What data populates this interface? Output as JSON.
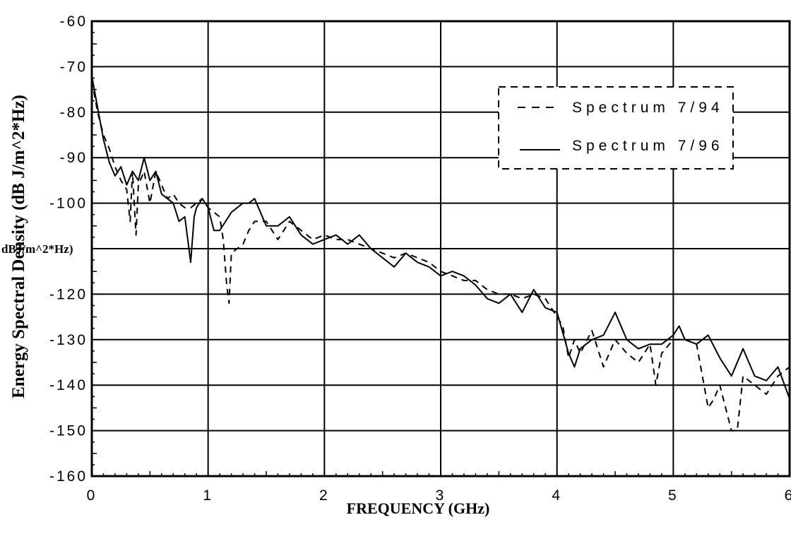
{
  "chart_data": {
    "type": "line",
    "xlabel": "FREQUENCY  (GHz)",
    "ylabel": "Energy Spectral Density (dB J/m^2*Hz)",
    "stray_label": "dBJ/m^2*Hz)",
    "xlim": [
      0,
      6
    ],
    "ylim": [
      -160,
      -60
    ],
    "x_ticks": [
      0,
      1,
      2,
      3,
      4,
      5,
      6
    ],
    "x_tick_labels": [
      "0",
      "1",
      "2",
      "3",
      "4",
      "5",
      "6"
    ],
    "y_ticks": [
      -60,
      -70,
      -80,
      -90,
      -100,
      -110,
      -120,
      -130,
      -140,
      -150,
      -160
    ],
    "y_tick_labels": [
      "-60",
      "-70",
      "-80",
      "-90",
      "-100",
      "",
      "-120",
      "-130",
      "-140",
      "-150",
      "-160"
    ],
    "grid": true,
    "legend_position": "top-right",
    "series": [
      {
        "name": "Spectrum 7/94",
        "style": "dashed",
        "color": "#000000",
        "x": [
          0,
          0.05,
          0.1,
          0.15,
          0.2,
          0.25,
          0.3,
          0.33,
          0.35,
          0.38,
          0.4,
          0.45,
          0.5,
          0.55,
          0.6,
          0.65,
          0.7,
          0.75,
          0.8,
          0.85,
          0.9,
          0.95,
          1.0,
          1.05,
          1.1,
          1.13,
          1.16,
          1.18,
          1.2,
          1.25,
          1.3,
          1.35,
          1.4,
          1.5,
          1.6,
          1.7,
          1.8,
          1.9,
          2.0,
          2.1,
          2.2,
          2.3,
          2.4,
          2.5,
          2.6,
          2.7,
          2.8,
          2.9,
          3.0,
          3.1,
          3.2,
          3.3,
          3.4,
          3.5,
          3.6,
          3.7,
          3.8,
          3.9,
          4.0,
          4.05,
          4.1,
          4.15,
          4.2,
          4.3,
          4.4,
          4.5,
          4.6,
          4.7,
          4.8,
          4.85,
          4.9,
          5.0,
          5.1,
          5.2,
          5.3,
          5.35,
          5.4,
          5.5,
          5.55,
          5.6,
          5.7,
          5.8,
          5.9,
          6.0
        ],
        "y": [
          -73,
          -80,
          -85,
          -88,
          -92,
          -95,
          -97,
          -104,
          -93,
          -107,
          -96,
          -93,
          -100,
          -93,
          -96,
          -99,
          -98,
          -100,
          -101,
          -101,
          -100,
          -99,
          -101,
          -102,
          -103,
          -108,
          -118,
          -122,
          -111,
          -110,
          -109,
          -106,
          -104,
          -104,
          -108,
          -104,
          -106,
          -108,
          -107,
          -108,
          -108,
          -109,
          -110,
          -111,
          -112,
          -111,
          -112,
          -113,
          -115,
          -116,
          -117,
          -117,
          -119,
          -120,
          -120,
          -121,
          -120,
          -121,
          -125,
          -127,
          -134,
          -130,
          -133,
          -128,
          -136,
          -130,
          -133,
          -135,
          -131,
          -140,
          -133,
          -130,
          -130,
          -131,
          -145,
          -143,
          -140,
          -150,
          -150,
          -138,
          -140,
          -142,
          -138,
          -136
        ]
      },
      {
        "name": "Spectrum 7/96",
        "style": "solid",
        "color": "#000000",
        "x": [
          0,
          0.05,
          0.1,
          0.15,
          0.2,
          0.25,
          0.3,
          0.35,
          0.4,
          0.45,
          0.5,
          0.55,
          0.6,
          0.65,
          0.7,
          0.75,
          0.8,
          0.85,
          0.88,
          0.9,
          0.95,
          1.0,
          1.05,
          1.1,
          1.15,
          1.2,
          1.3,
          1.35,
          1.4,
          1.5,
          1.6,
          1.7,
          1.8,
          1.9,
          2.0,
          2.1,
          2.2,
          2.3,
          2.4,
          2.5,
          2.6,
          2.7,
          2.8,
          2.9,
          3.0,
          3.1,
          3.2,
          3.3,
          3.4,
          3.5,
          3.6,
          3.7,
          3.8,
          3.9,
          4.0,
          4.1,
          4.15,
          4.2,
          4.3,
          4.4,
          4.5,
          4.6,
          4.7,
          4.8,
          4.9,
          5.0,
          5.05,
          5.1,
          5.2,
          5.3,
          5.4,
          5.5,
          5.6,
          5.7,
          5.8,
          5.9,
          6.0
        ],
        "y": [
          -72,
          -79,
          -86,
          -91,
          -94,
          -92,
          -96,
          -93,
          -95,
          -90,
          -95,
          -93,
          -98,
          -99,
          -100,
          -104,
          -103,
          -113,
          -103,
          -101,
          -99,
          -101,
          -106,
          -106,
          -104,
          -102,
          -100,
          -100,
          -99,
          -105,
          -105,
          -103,
          -107,
          -109,
          -108,
          -107,
          -109,
          -107,
          -110,
          -112,
          -114,
          -111,
          -113,
          -114,
          -116,
          -115,
          -116,
          -118,
          -121,
          -122,
          -120,
          -124,
          -119,
          -123,
          -124,
          -133,
          -136,
          -132,
          -130,
          -129,
          -124,
          -130,
          -132,
          -131,
          -131,
          -129,
          -127,
          -130,
          -131,
          -129,
          -134,
          -138,
          -132,
          -138,
          -139,
          -136,
          -143
        ]
      }
    ]
  }
}
